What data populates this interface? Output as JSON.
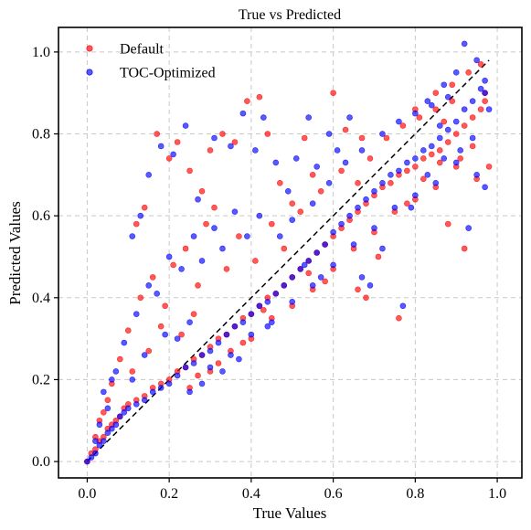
{
  "chart_data": {
    "type": "scatter",
    "title": "True vs Predicted",
    "xlabel": "True Values",
    "ylabel": "Predicted Values",
    "xlim": [
      -0.07,
      1.06
    ],
    "ylim": [
      -0.04,
      1.06
    ],
    "xticks": [
      0.0,
      0.2,
      0.4,
      0.6,
      0.8,
      1.0
    ],
    "yticks": [
      0.0,
      0.2,
      0.4,
      0.6,
      0.8,
      1.0
    ],
    "xtick_labels": [
      "0.0",
      "0.2",
      "0.4",
      "0.6",
      "0.8",
      "1.0"
    ],
    "ytick_labels": [
      "0.0",
      "0.2",
      "0.4",
      "0.6",
      "0.8",
      "1.0"
    ],
    "grid": true,
    "legend_position": "top-left",
    "reference_line": {
      "x": [
        0.0,
        0.98
      ],
      "y": [
        0.0,
        0.98
      ],
      "style": "dashed",
      "color": "#000000"
    },
    "series": [
      {
        "name": "Default",
        "color": "#ff0000",
        "points": [
          [
            0.0,
            0.0
          ],
          [
            0.01,
            0.02
          ],
          [
            0.02,
            0.03
          ],
          [
            0.03,
            0.05
          ],
          [
            0.04,
            0.06
          ],
          [
            0.05,
            0.08
          ],
          [
            0.06,
            0.09
          ],
          [
            0.07,
            0.1
          ],
          [
            0.08,
            0.11
          ],
          [
            0.09,
            0.13
          ],
          [
            0.1,
            0.14
          ],
          [
            0.12,
            0.15
          ],
          [
            0.14,
            0.16
          ],
          [
            0.16,
            0.18
          ],
          [
            0.18,
            0.19
          ],
          [
            0.2,
            0.2
          ],
          [
            0.22,
            0.22
          ],
          [
            0.24,
            0.23
          ],
          [
            0.26,
            0.25
          ],
          [
            0.28,
            0.26
          ],
          [
            0.3,
            0.28
          ],
          [
            0.32,
            0.3
          ],
          [
            0.34,
            0.31
          ],
          [
            0.36,
            0.33
          ],
          [
            0.38,
            0.35
          ],
          [
            0.4,
            0.36
          ],
          [
            0.42,
            0.38
          ],
          [
            0.44,
            0.4
          ],
          [
            0.46,
            0.41
          ],
          [
            0.48,
            0.43
          ],
          [
            0.5,
            0.45
          ],
          [
            0.52,
            0.47
          ],
          [
            0.54,
            0.49
          ],
          [
            0.56,
            0.51
          ],
          [
            0.58,
            0.53
          ],
          [
            0.6,
            0.55
          ],
          [
            0.62,
            0.57
          ],
          [
            0.64,
            0.59
          ],
          [
            0.66,
            0.61
          ],
          [
            0.68,
            0.63
          ],
          [
            0.7,
            0.65
          ],
          [
            0.72,
            0.67
          ],
          [
            0.74,
            0.68
          ],
          [
            0.76,
            0.7
          ],
          [
            0.78,
            0.71
          ],
          [
            0.8,
            0.72
          ],
          [
            0.82,
            0.74
          ],
          [
            0.84,
            0.75
          ],
          [
            0.86,
            0.76
          ],
          [
            0.88,
            0.78
          ],
          [
            0.9,
            0.8
          ],
          [
            0.92,
            0.82
          ],
          [
            0.94,
            0.84
          ],
          [
            0.96,
            0.86
          ],
          [
            0.97,
            0.9
          ],
          [
            0.96,
            0.97
          ],
          [
            0.93,
            0.95
          ],
          [
            0.89,
            0.92
          ],
          [
            0.85,
            0.9
          ],
          [
            0.8,
            0.86
          ],
          [
            0.12,
            0.58
          ],
          [
            0.14,
            0.62
          ],
          [
            0.17,
            0.8
          ],
          [
            0.2,
            0.74
          ],
          [
            0.22,
            0.78
          ],
          [
            0.25,
            0.71
          ],
          [
            0.28,
            0.66
          ],
          [
            0.3,
            0.76
          ],
          [
            0.33,
            0.8
          ],
          [
            0.36,
            0.78
          ],
          [
            0.39,
            0.88
          ],
          [
            0.42,
            0.89
          ],
          [
            0.44,
            0.8
          ],
          [
            0.47,
            0.68
          ],
          [
            0.5,
            0.63
          ],
          [
            0.53,
            0.79
          ],
          [
            0.55,
            0.7
          ],
          [
            0.6,
            0.9
          ],
          [
            0.63,
            0.81
          ],
          [
            0.67,
            0.79
          ],
          [
            0.08,
            0.25
          ],
          [
            0.1,
            0.32
          ],
          [
            0.13,
            0.4
          ],
          [
            0.16,
            0.45
          ],
          [
            0.19,
            0.38
          ],
          [
            0.21,
            0.48
          ],
          [
            0.24,
            0.52
          ],
          [
            0.27,
            0.43
          ],
          [
            0.29,
            0.58
          ],
          [
            0.31,
            0.62
          ],
          [
            0.34,
            0.47
          ],
          [
            0.37,
            0.55
          ],
          [
            0.41,
            0.49
          ],
          [
            0.45,
            0.58
          ],
          [
            0.48,
            0.52
          ],
          [
            0.52,
            0.61
          ],
          [
            0.57,
            0.66
          ],
          [
            0.62,
            0.71
          ],
          [
            0.66,
            0.68
          ],
          [
            0.69,
            0.74
          ],
          [
            0.25,
            0.18
          ],
          [
            0.3,
            0.22
          ],
          [
            0.35,
            0.27
          ],
          [
            0.4,
            0.3
          ],
          [
            0.45,
            0.35
          ],
          [
            0.5,
            0.38
          ],
          [
            0.55,
            0.42
          ],
          [
            0.6,
            0.47
          ],
          [
            0.65,
            0.52
          ],
          [
            0.7,
            0.56
          ],
          [
            0.75,
            0.61
          ],
          [
            0.8,
            0.64
          ],
          [
            0.85,
            0.67
          ],
          [
            0.9,
            0.72
          ],
          [
            0.95,
            0.69
          ],
          [
            0.88,
            0.58
          ],
          [
            0.92,
            0.52
          ],
          [
            0.78,
            0.63
          ],
          [
            0.82,
            0.69
          ],
          [
            0.86,
            0.73
          ],
          [
            0.73,
            0.79
          ],
          [
            0.77,
            0.82
          ],
          [
            0.81,
            0.84
          ],
          [
            0.85,
            0.86
          ],
          [
            0.89,
            0.88
          ],
          [
            0.91,
            0.74
          ],
          [
            0.94,
            0.77
          ],
          [
            0.97,
            0.88
          ],
          [
            0.98,
            0.72
          ],
          [
            0.87,
            0.83
          ],
          [
            0.66,
            0.42
          ],
          [
            0.68,
            0.4
          ],
          [
            0.76,
            0.35
          ],
          [
            0.71,
            0.5
          ],
          [
            0.58,
            0.44
          ],
          [
            0.54,
            0.46
          ],
          [
            0.43,
            0.37
          ],
          [
            0.38,
            0.29
          ],
          [
            0.32,
            0.24
          ],
          [
            0.27,
            0.21
          ],
          [
            0.05,
            0.15
          ],
          [
            0.06,
            0.19
          ],
          [
            0.03,
            0.1
          ],
          [
            0.04,
            0.12
          ],
          [
            0.02,
            0.06
          ],
          [
            0.11,
            0.22
          ],
          [
            0.15,
            0.27
          ],
          [
            0.18,
            0.33
          ],
          [
            0.23,
            0.31
          ],
          [
            0.26,
            0.36
          ]
        ]
      },
      {
        "name": "TOC-Optimized",
        "color": "#0000ff",
        "points": [
          [
            0.0,
            0.0
          ],
          [
            0.01,
            0.01
          ],
          [
            0.02,
            0.02
          ],
          [
            0.03,
            0.04
          ],
          [
            0.04,
            0.05
          ],
          [
            0.05,
            0.07
          ],
          [
            0.06,
            0.08
          ],
          [
            0.07,
            0.09
          ],
          [
            0.08,
            0.11
          ],
          [
            0.09,
            0.12
          ],
          [
            0.1,
            0.13
          ],
          [
            0.12,
            0.14
          ],
          [
            0.14,
            0.15
          ],
          [
            0.16,
            0.17
          ],
          [
            0.18,
            0.18
          ],
          [
            0.2,
            0.19
          ],
          [
            0.22,
            0.21
          ],
          [
            0.24,
            0.23
          ],
          [
            0.26,
            0.24
          ],
          [
            0.28,
            0.26
          ],
          [
            0.3,
            0.27
          ],
          [
            0.32,
            0.29
          ],
          [
            0.34,
            0.31
          ],
          [
            0.36,
            0.33
          ],
          [
            0.38,
            0.34
          ],
          [
            0.4,
            0.36
          ],
          [
            0.42,
            0.38
          ],
          [
            0.44,
            0.39
          ],
          [
            0.46,
            0.41
          ],
          [
            0.48,
            0.43
          ],
          [
            0.5,
            0.45
          ],
          [
            0.52,
            0.47
          ],
          [
            0.54,
            0.49
          ],
          [
            0.56,
            0.51
          ],
          [
            0.58,
            0.53
          ],
          [
            0.6,
            0.56
          ],
          [
            0.62,
            0.58
          ],
          [
            0.64,
            0.6
          ],
          [
            0.66,
            0.62
          ],
          [
            0.68,
            0.64
          ],
          [
            0.7,
            0.66
          ],
          [
            0.72,
            0.68
          ],
          [
            0.74,
            0.7
          ],
          [
            0.76,
            0.71
          ],
          [
            0.78,
            0.73
          ],
          [
            0.8,
            0.74
          ],
          [
            0.82,
            0.76
          ],
          [
            0.84,
            0.77
          ],
          [
            0.86,
            0.79
          ],
          [
            0.88,
            0.81
          ],
          [
            0.9,
            0.83
          ],
          [
            0.92,
            0.86
          ],
          [
            0.94,
            0.88
          ],
          [
            0.96,
            0.91
          ],
          [
            0.97,
            0.93
          ],
          [
            0.92,
            1.02
          ],
          [
            0.95,
            0.98
          ],
          [
            0.9,
            0.95
          ],
          [
            0.87,
            0.92
          ],
          [
            0.83,
            0.88
          ],
          [
            0.11,
            0.55
          ],
          [
            0.13,
            0.6
          ],
          [
            0.15,
            0.7
          ],
          [
            0.18,
            0.77
          ],
          [
            0.21,
            0.75
          ],
          [
            0.24,
            0.82
          ],
          [
            0.27,
            0.64
          ],
          [
            0.31,
            0.79
          ],
          [
            0.35,
            0.77
          ],
          [
            0.38,
            0.85
          ],
          [
            0.41,
            0.76
          ],
          [
            0.43,
            0.84
          ],
          [
            0.46,
            0.73
          ],
          [
            0.49,
            0.66
          ],
          [
            0.51,
            0.74
          ],
          [
            0.54,
            0.84
          ],
          [
            0.56,
            0.72
          ],
          [
            0.59,
            0.8
          ],
          [
            0.61,
            0.76
          ],
          [
            0.64,
            0.84
          ],
          [
            0.07,
            0.22
          ],
          [
            0.09,
            0.29
          ],
          [
            0.12,
            0.36
          ],
          [
            0.15,
            0.43
          ],
          [
            0.17,
            0.41
          ],
          [
            0.2,
            0.5
          ],
          [
            0.23,
            0.47
          ],
          [
            0.26,
            0.55
          ],
          [
            0.28,
            0.49
          ],
          [
            0.31,
            0.57
          ],
          [
            0.33,
            0.52
          ],
          [
            0.36,
            0.61
          ],
          [
            0.39,
            0.55
          ],
          [
            0.42,
            0.6
          ],
          [
            0.47,
            0.55
          ],
          [
            0.5,
            0.59
          ],
          [
            0.55,
            0.63
          ],
          [
            0.59,
            0.68
          ],
          [
            0.63,
            0.73
          ],
          [
            0.67,
            0.76
          ],
          [
            0.25,
            0.17
          ],
          [
            0.3,
            0.23
          ],
          [
            0.35,
            0.26
          ],
          [
            0.4,
            0.31
          ],
          [
            0.45,
            0.34
          ],
          [
            0.5,
            0.39
          ],
          [
            0.55,
            0.43
          ],
          [
            0.6,
            0.48
          ],
          [
            0.65,
            0.53
          ],
          [
            0.7,
            0.57
          ],
          [
            0.75,
            0.62
          ],
          [
            0.8,
            0.65
          ],
          [
            0.85,
            0.68
          ],
          [
            0.9,
            0.73
          ],
          [
            0.95,
            0.7
          ],
          [
            0.93,
            0.57
          ],
          [
            0.97,
            0.67
          ],
          [
            0.79,
            0.62
          ],
          [
            0.83,
            0.7
          ],
          [
            0.87,
            0.74
          ],
          [
            0.72,
            0.8
          ],
          [
            0.76,
            0.83
          ],
          [
            0.8,
            0.85
          ],
          [
            0.84,
            0.87
          ],
          [
            0.88,
            0.89
          ],
          [
            0.91,
            0.76
          ],
          [
            0.94,
            0.79
          ],
          [
            0.97,
            0.9
          ],
          [
            0.98,
            0.86
          ],
          [
            0.86,
            0.82
          ],
          [
            0.67,
            0.45
          ],
          [
            0.69,
            0.43
          ],
          [
            0.77,
            0.38
          ],
          [
            0.72,
            0.52
          ],
          [
            0.57,
            0.45
          ],
          [
            0.53,
            0.48
          ],
          [
            0.44,
            0.33
          ],
          [
            0.37,
            0.25
          ],
          [
            0.33,
            0.22
          ],
          [
            0.28,
            0.19
          ],
          [
            0.04,
            0.17
          ],
          [
            0.06,
            0.2
          ],
          [
            0.03,
            0.09
          ],
          [
            0.05,
            0.13
          ],
          [
            0.02,
            0.05
          ],
          [
            0.11,
            0.2
          ],
          [
            0.14,
            0.26
          ],
          [
            0.19,
            0.31
          ],
          [
            0.22,
            0.3
          ],
          [
            0.25,
            0.34
          ]
        ]
      }
    ]
  }
}
